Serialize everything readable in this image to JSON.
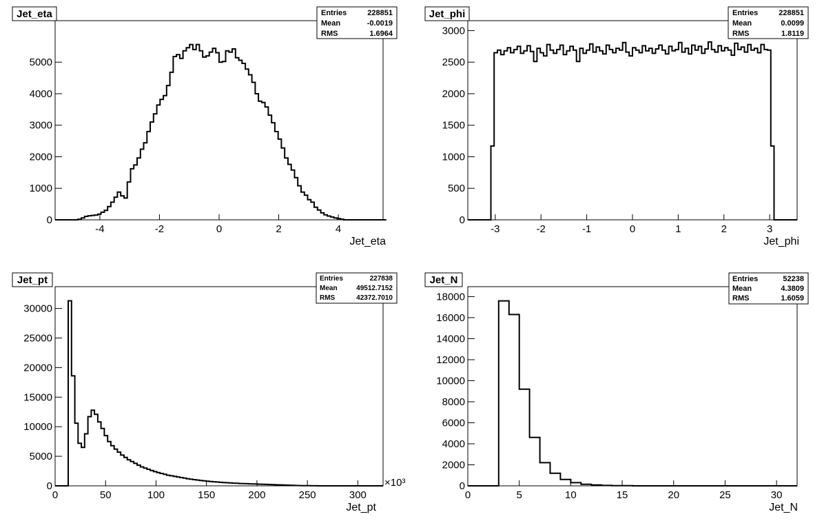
{
  "chart_data": [
    {
      "type": "histogram",
      "title": "Jet_eta",
      "xlabel": "Jet_eta",
      "ylabel": "",
      "xlim": [
        -5.5,
        5.5
      ],
      "ylim": [
        0,
        6000
      ],
      "xticks": [
        -4,
        -2,
        0,
        2,
        4
      ],
      "xtick_labels": [
        "-4",
        "-2",
        "0",
        "2",
        "4"
      ],
      "yticks": [
        0,
        1000,
        2000,
        3000,
        4000,
        5000
      ],
      "ytick_labels": [
        "0",
        "1000",
        "2000",
        "3000",
        "4000",
        "5000"
      ],
      "exponent_label": "",
      "grid": false,
      "stats": [
        {
          "label": "Entries",
          "value": "228851"
        },
        {
          "label": "Mean",
          "value": "-0.0019"
        },
        {
          "label": "RMS",
          "value": "1.6964"
        }
      ],
      "bin_edges_start": -5.5,
      "bin_width": 0.11,
      "values": [
        0,
        0,
        0,
        0,
        0,
        0,
        0,
        20,
        60,
        110,
        130,
        140,
        150,
        180,
        240,
        300,
        420,
        560,
        720,
        880,
        760,
        690,
        1200,
        1620,
        1740,
        1960,
        2240,
        2440,
        2800,
        3100,
        3360,
        3640,
        3820,
        3940,
        4260,
        4680,
        5180,
        5240,
        5120,
        5360,
        5460,
        5560,
        5400,
        5560,
        5360,
        5160,
        5200,
        5320,
        5440,
        5300,
        5000,
        5020,
        5360,
        5320,
        5420,
        5140,
        5060,
        4960,
        4780,
        4600,
        4360,
        4000,
        3760,
        3720,
        3580,
        3320,
        3080,
        2800,
        2560,
        2280,
        1960,
        1760,
        1580,
        1340,
        1080,
        880,
        780,
        640,
        560,
        400,
        310,
        220,
        160,
        120,
        90,
        60,
        40,
        20,
        0,
        0,
        0,
        0,
        0,
        0,
        0,
        0,
        0,
        0,
        0,
        0,
        0
      ]
    },
    {
      "type": "histogram",
      "title": "Jet_phi",
      "xlabel": "Jet_phi",
      "ylabel": "",
      "xlim": [
        -3.6,
        3.6
      ],
      "ylim": [
        0,
        3000
      ],
      "xticks": [
        -3,
        -2,
        -1,
        0,
        1,
        2,
        3
      ],
      "xtick_labels": [
        "-3",
        "-2",
        "-1",
        "0",
        "1",
        "2",
        "3"
      ],
      "yticks": [
        0,
        500,
        1000,
        1500,
        2000,
        2500,
        3000
      ],
      "ytick_labels": [
        "0",
        "500",
        "1000",
        "1500",
        "2000",
        "2500",
        "3000"
      ],
      "exponent_label": "",
      "grid": false,
      "stats": [
        {
          "label": "Entries",
          "value": "228851"
        },
        {
          "label": "Mean",
          "value": "0.0099"
        },
        {
          "label": "RMS",
          "value": "1.8119"
        }
      ],
      "bin_edges_start": -3.6,
      "bin_width": 0.072,
      "values": [
        0,
        0,
        0,
        0,
        0,
        0,
        0,
        1170,
        2650,
        2690,
        2620,
        2680,
        2730,
        2650,
        2700,
        2750,
        2640,
        2680,
        2760,
        2670,
        2510,
        2720,
        2650,
        2600,
        2780,
        2690,
        2640,
        2700,
        2770,
        2620,
        2680,
        2750,
        2690,
        2510,
        2720,
        2640,
        2690,
        2790,
        2660,
        2740,
        2680,
        2630,
        2770,
        2700,
        2650,
        2720,
        2690,
        2810,
        2660,
        2600,
        2730,
        2690,
        2650,
        2760,
        2680,
        2720,
        2640,
        2710,
        2770,
        2690,
        2630,
        2750,
        2680,
        2700,
        2810,
        2660,
        2720,
        2630,
        2770,
        2690,
        2750,
        2640,
        2710,
        2820,
        2700,
        2660,
        2760,
        2680,
        2730,
        2690,
        2610,
        2800,
        2700,
        2740,
        2660,
        2780,
        2690,
        2720,
        2650,
        2780,
        2700,
        2690,
        1170,
        0,
        0,
        0,
        0,
        0,
        0,
        0
      ]
    },
    {
      "type": "histogram",
      "title": "Jet_pt",
      "xlabel": "Jet_pt",
      "ylabel": "",
      "xlim": [
        0,
        325
      ],
      "ylim": [
        0,
        32000
      ],
      "xticks": [
        0,
        50,
        100,
        150,
        200,
        250,
        300
      ],
      "xtick_labels": [
        "0",
        "50",
        "100",
        "150",
        "200",
        "250",
        "300"
      ],
      "yticks": [
        0,
        5000,
        10000,
        15000,
        20000,
        25000,
        30000
      ],
      "ytick_labels": [
        "0",
        "5000",
        "10000",
        "15000",
        "20000",
        "25000",
        "30000"
      ],
      "exponent_label": "×10³",
      "grid": false,
      "stats": [
        {
          "label": "Entries",
          "value": "227838"
        },
        {
          "label": "Mean",
          "value": "49512.7152"
        },
        {
          "label": "RMS",
          "value": "42372.7010"
        }
      ],
      "bin_edges_start": 0,
      "bin_width": 3.25,
      "values": [
        0,
        0,
        0,
        0,
        31300,
        18600,
        10600,
        7200,
        6500,
        8800,
        11700,
        12800,
        12100,
        10800,
        9700,
        8500,
        7500,
        6800,
        6200,
        5700,
        5200,
        4800,
        4400,
        4100,
        3800,
        3500,
        3200,
        3000,
        2800,
        2600,
        2400,
        2250,
        2100,
        1950,
        1800,
        1700,
        1600,
        1500,
        1400,
        1300,
        1200,
        1120,
        1050,
        980,
        910,
        850,
        790,
        740,
        690,
        640,
        600,
        560,
        520,
        490,
        460,
        430,
        400,
        380,
        360,
        340,
        320,
        300,
        280,
        260,
        240,
        220,
        200,
        180,
        160,
        140,
        120,
        100,
        80,
        60,
        50,
        40,
        30,
        20,
        10,
        10,
        0,
        0,
        0,
        0,
        0,
        0,
        0,
        0,
        0,
        0,
        0,
        0,
        0,
        0,
        0,
        0,
        0,
        0,
        0,
        0
      ]
    },
    {
      "type": "histogram",
      "title": "Jet_N",
      "xlabel": "Jet_N",
      "ylabel": "",
      "xlim": [
        0,
        32
      ],
      "ylim": [
        0,
        18000
      ],
      "xticks": [
        0,
        5,
        10,
        15,
        20,
        25,
        30
      ],
      "xtick_labels": [
        "0",
        "5",
        "10",
        "15",
        "20",
        "25",
        "30"
      ],
      "yticks": [
        0,
        2000,
        4000,
        6000,
        8000,
        10000,
        12000,
        14000,
        16000,
        18000
      ],
      "ytick_labels": [
        "0",
        "2000",
        "4000",
        "6000",
        "8000",
        "10000",
        "12000",
        "14000",
        "16000",
        "18000"
      ],
      "exponent_label": "",
      "grid": false,
      "stats": [
        {
          "label": "Entries",
          "value": "52238"
        },
        {
          "label": "Mean",
          "value": "4.3809"
        },
        {
          "label": "RMS",
          "value": "1.6059"
        }
      ],
      "bin_edges_start": 0,
      "bin_width": 1,
      "values": [
        0,
        0,
        0,
        17600,
        16300,
        9200,
        4600,
        2200,
        1200,
        600,
        300,
        150,
        80,
        40,
        20,
        10,
        0,
        0,
        0,
        0,
        0,
        0,
        0,
        0,
        0,
        0,
        0,
        0,
        0,
        0,
        0,
        0
      ]
    }
  ]
}
